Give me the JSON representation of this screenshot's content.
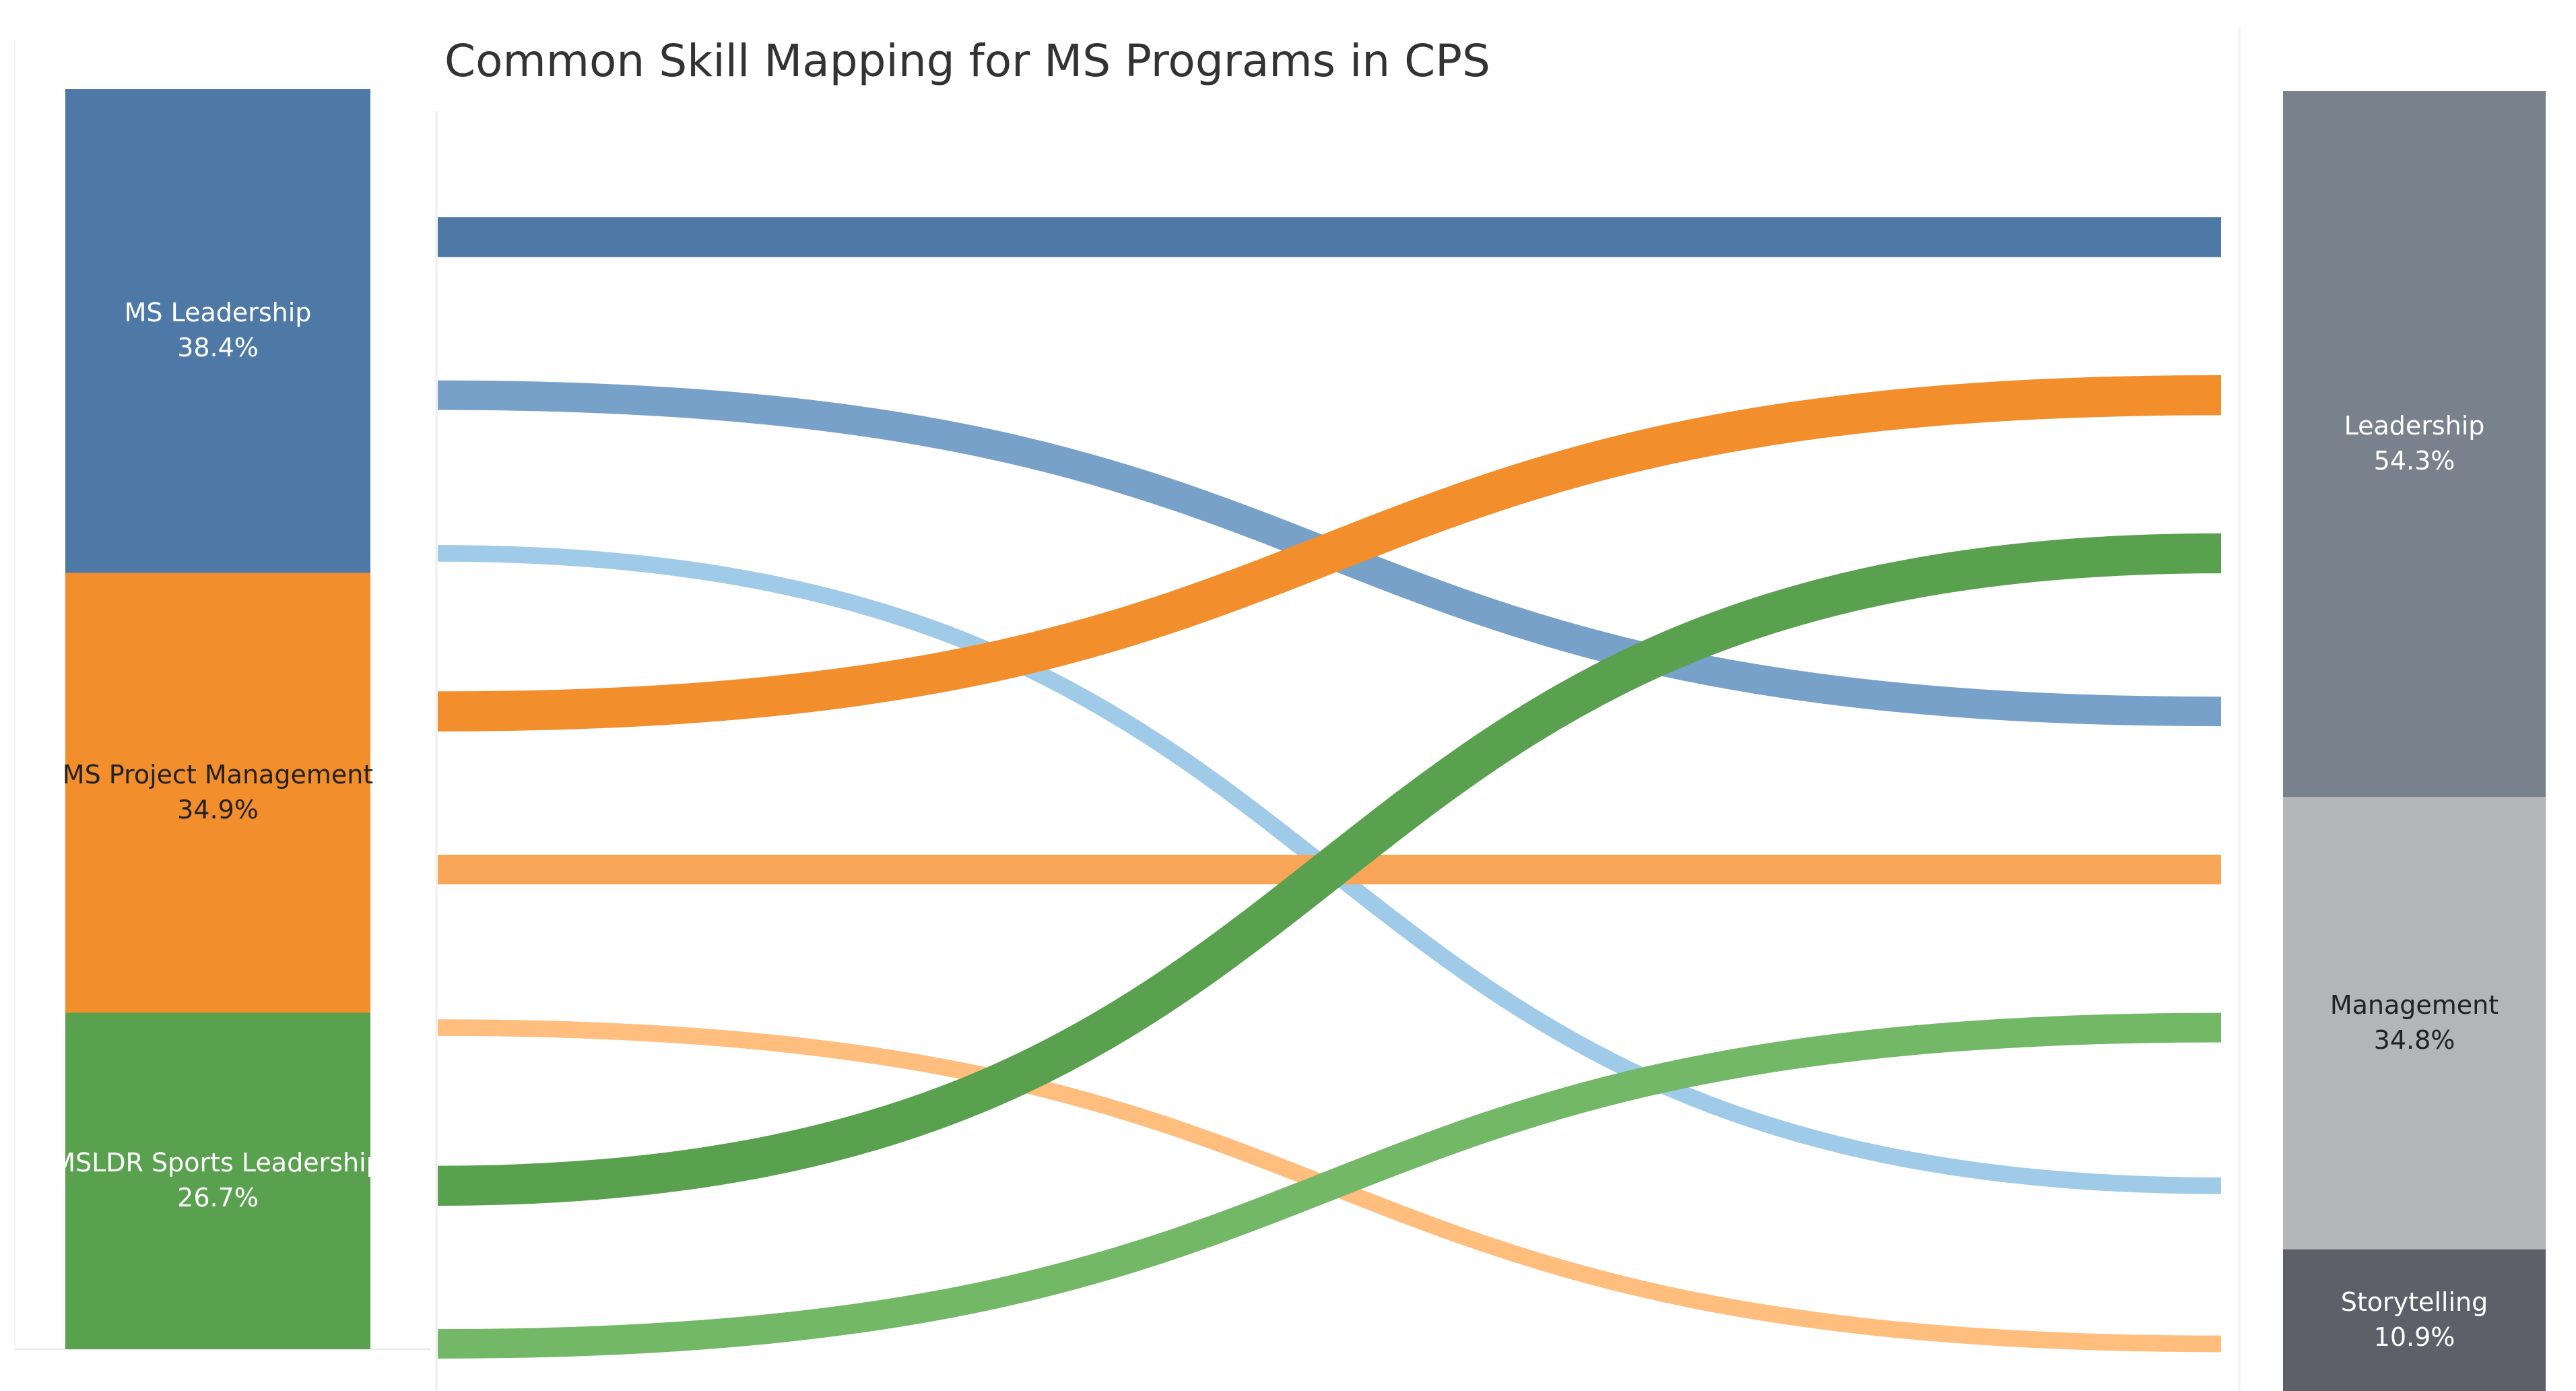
{
  "chart_data": {
    "type": "sankey",
    "title": "Common Skill Mapping for MS Programs in CPS",
    "sources": [
      {
        "name": "MS Leadership",
        "percent": "38.4%",
        "value": 38.4,
        "color": "#4e79a7",
        "label_color": "#ffffff"
      },
      {
        "name": "MS Project Management",
        "percent": "34.9%",
        "value": 34.9,
        "color": "#f28e2b",
        "label_color": "#222222"
      },
      {
        "name": "MSLDR Sports Leadership",
        "percent": "26.7%",
        "value": 26.7,
        "color": "#59a14f",
        "label_color": "#ffffff"
      }
    ],
    "targets": [
      {
        "name": "Leadership",
        "percent": "54.3%",
        "value": 54.3,
        "color": "#79818d",
        "label_color": "#ffffff"
      },
      {
        "name": "Management",
        "percent": "34.8%",
        "value": 34.8,
        "color": "#b3b5b6",
        "label_color": "#222222"
      },
      {
        "name": "Storytelling",
        "percent": "10.9%",
        "value": 10.9,
        "color": "#5d6068",
        "label_color": "#ffffff"
      }
    ],
    "flows": [
      {
        "source": "MS Leadership",
        "target": "Leadership",
        "color": "#4e79a7"
      },
      {
        "source": "MS Leadership",
        "target": "Management",
        "color": "#77a1c9"
      },
      {
        "source": "MS Leadership",
        "target": "Storytelling",
        "color": "#a0cbe8"
      },
      {
        "source": "MS Project Management",
        "target": "Leadership",
        "color": "#f28e2b"
      },
      {
        "source": "MS Project Management",
        "target": "Management",
        "color": "#f9a557"
      },
      {
        "source": "MS Project Management",
        "target": "Storytelling",
        "color": "#ffbe7d"
      },
      {
        "source": "MSLDR Sports Leadership",
        "target": "Leadership",
        "color": "#59a14f"
      },
      {
        "source": "MSLDR Sports Leadership",
        "target": "Management",
        "color": "#72b866"
      }
    ]
  }
}
